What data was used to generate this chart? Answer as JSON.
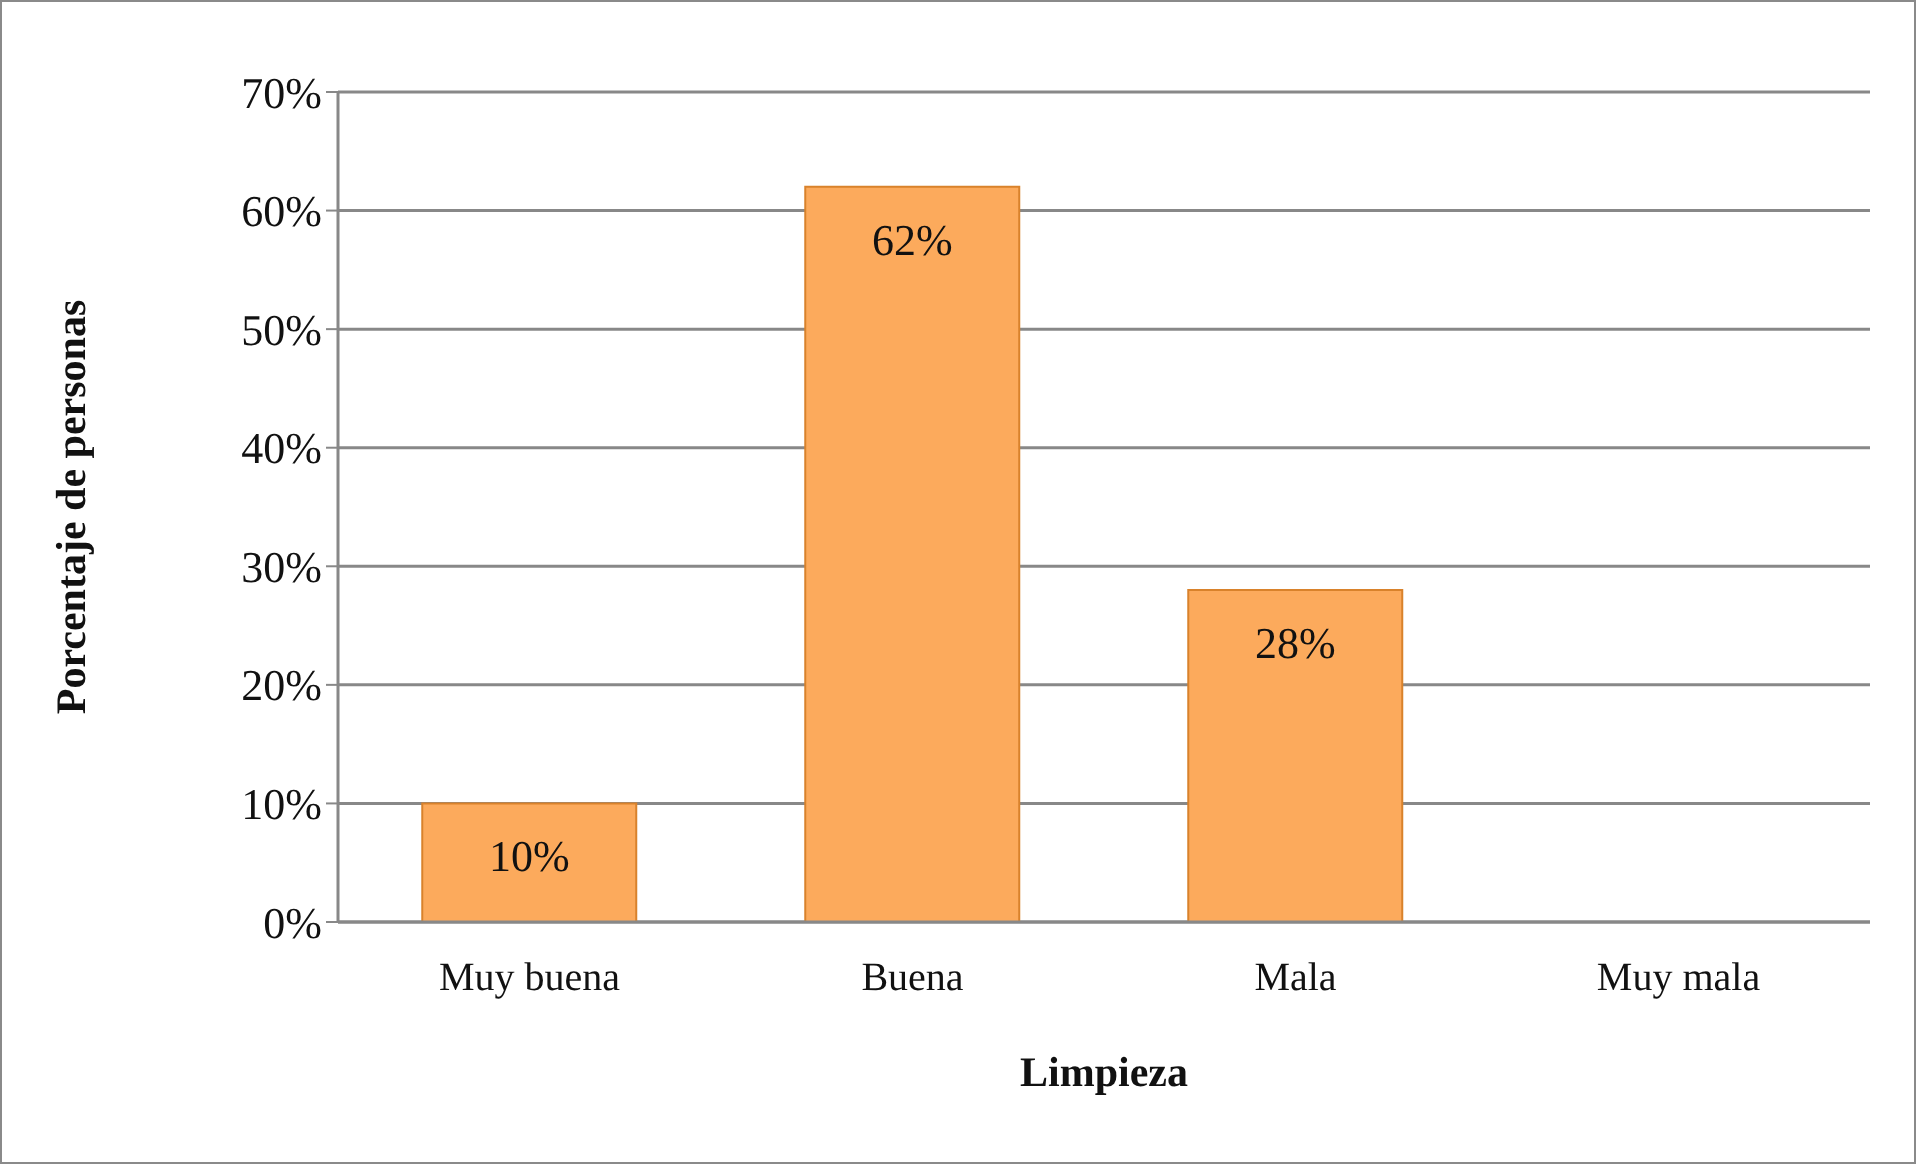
{
  "chart_data": {
    "type": "bar",
    "xlabel": "Limpieza",
    "ylabel": "Porcentaje de personas",
    "categories": [
      "Muy buena",
      "Buena",
      "Mala",
      "Muy mala"
    ],
    "values": [
      10,
      62,
      28,
      0
    ],
    "value_labels": [
      "10%",
      "62%",
      "28%",
      null
    ],
    "color": "#fcaa5c",
    "ylim": [
      0,
      70
    ],
    "yticks": [
      {
        "value": 0,
        "label": "0%"
      },
      {
        "value": 10,
        "label": "10%"
      },
      {
        "value": 20,
        "label": "20%"
      },
      {
        "value": 30,
        "label": "30%"
      },
      {
        "value": 40,
        "label": "40%"
      },
      {
        "value": 50,
        "label": "50%"
      },
      {
        "value": 60,
        "label": "60%"
      },
      {
        "value": 70,
        "label": "70%"
      }
    ],
    "grid": "y",
    "legend": false
  }
}
